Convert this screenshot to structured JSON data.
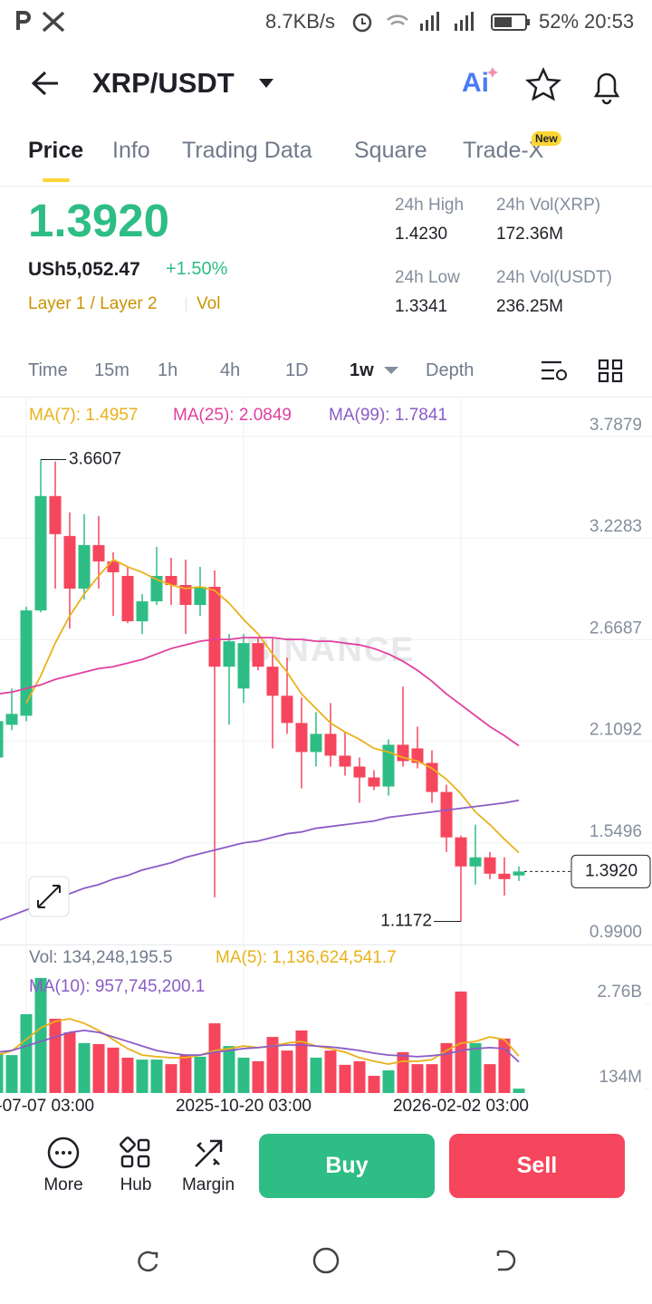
{
  "status": {
    "speed": "8.7KB/s",
    "battery": "52%",
    "time": "20:53"
  },
  "header": {
    "pair": "XRP/USDT",
    "ai": "Ai"
  },
  "tabs": {
    "items": [
      "Price",
      "Info",
      "Trading Data",
      "Square",
      "Trade-X"
    ],
    "badge": "New"
  },
  "price": {
    "last": "1.3920",
    "local": "USh5,052.47",
    "change": "+1.50%",
    "tags": [
      "Layer 1 / Layer 2",
      "Vol"
    ]
  },
  "stats": {
    "labels": [
      "24h High",
      "24h Vol(XRP)",
      "24h Low",
      "24h Vol(USDT)"
    ],
    "values": [
      "1.4230",
      "172.36M",
      "1.3341",
      "236.25M"
    ]
  },
  "intervals": [
    "Time",
    "15m",
    "1h",
    "4h",
    "1D",
    "1w",
    "Depth"
  ],
  "chart_data": [
    {
      "type": "candlestick",
      "watermark": "BINANCE",
      "up_color": "#2ebd85",
      "down_color": "#f6465d",
      "categories": [
        null,
        null,
        "2025-07-07 03:00",
        null,
        null,
        null,
        null,
        null,
        null,
        null,
        null,
        null,
        null,
        null,
        null,
        null,
        null,
        "2025-10-20 03:00",
        null,
        null,
        null,
        null,
        null,
        null,
        null,
        null,
        null,
        null,
        null,
        null,
        null,
        null,
        "2026-02-02 03:00",
        null,
        null,
        null,
        null
      ],
      "open": [
        2.02,
        2.2,
        2.25,
        2.83,
        3.46,
        3.24,
        2.95,
        3.19,
        3.1,
        3.02,
        2.77,
        2.88,
        3.02,
        2.97,
        2.86,
        2.96,
        2.52,
        2.4,
        2.65,
        2.52,
        2.36,
        2.21,
        2.05,
        2.15,
        2.03,
        1.97,
        1.91,
        1.86,
        2.09,
        2.07,
        1.99,
        1.83,
        1.58,
        1.42,
        1.47,
        1.38,
        1.37
      ],
      "high": [
        2.25,
        2.4,
        2.85,
        3.6607,
        3.65,
        3.37,
        3.36,
        3.35,
        3.15,
        3.07,
        2.92,
        3.18,
        3.12,
        3.11,
        3.07,
        3.05,
        2.7,
        2.7,
        2.68,
        2.68,
        2.57,
        2.35,
        2.27,
        2.32,
        2.16,
        2.02,
        1.95,
        2.12,
        2.41,
        2.19,
        2.06,
        1.87,
        1.59,
        1.65,
        1.5,
        1.47,
        1.42
      ],
      "low": [
        2.0,
        2.17,
        2.22,
        2.82,
        2.95,
        2.73,
        2.89,
        2.95,
        2.8,
        2.76,
        2.7,
        2.86,
        2.86,
        2.7,
        2.8,
        1.25,
        2.2,
        2.32,
        2.5,
        2.07,
        2.15,
        1.85,
        1.97,
        1.97,
        1.92,
        1.77,
        1.84,
        1.81,
        1.97,
        1.96,
        1.77,
        1.5,
        1.1172,
        1.32,
        1.35,
        1.26,
        1.34
      ],
      "close": [
        2.22,
        2.26,
        2.83,
        3.46,
        3.25,
        2.95,
        3.19,
        3.1,
        3.04,
        2.77,
        2.88,
        3.02,
        2.97,
        2.86,
        2.96,
        2.52,
        2.66,
        2.65,
        2.52,
        2.36,
        2.21,
        2.05,
        2.15,
        2.03,
        1.97,
        1.91,
        1.86,
        2.09,
        2.0,
        1.99,
        1.83,
        1.58,
        1.42,
        1.47,
        1.38,
        1.35,
        1.392
      ],
      "series": [
        {
          "name": "MA(7): 1.4957",
          "color": "#e9b21a",
          "values": [
            null,
            null,
            2.32,
            2.47,
            2.65,
            2.8,
            2.92,
            3.02,
            3.11,
            3.07,
            3.04,
            3.0,
            2.97,
            2.95,
            2.96,
            2.94,
            2.87,
            2.78,
            2.7,
            2.59,
            2.49,
            2.37,
            2.29,
            2.21,
            2.16,
            2.12,
            2.07,
            2.05,
            2.02,
            2.0,
            1.96,
            1.9,
            1.82,
            1.72,
            1.65,
            1.57,
            1.4957
          ]
        },
        {
          "name": "MA(25): 2.0849",
          "color": "#e040a0",
          "values": [
            2.37,
            2.38,
            2.4,
            2.42,
            2.45,
            2.47,
            2.49,
            2.51,
            2.52,
            2.54,
            2.56,
            2.59,
            2.62,
            2.64,
            2.66,
            2.67,
            2.67,
            2.68,
            2.68,
            2.68,
            2.67,
            2.67,
            2.66,
            2.66,
            2.65,
            2.64,
            2.62,
            2.59,
            2.55,
            2.5,
            2.44,
            2.37,
            2.31,
            2.25,
            2.19,
            2.14,
            2.0849
          ]
        },
        {
          "name": "MA(99): 1.7841",
          "color": "#8a5cc7",
          "values": [
            1.12,
            1.15,
            1.18,
            1.21,
            1.24,
            1.27,
            1.3,
            1.32,
            1.35,
            1.37,
            1.4,
            1.42,
            1.44,
            1.47,
            1.49,
            1.51,
            1.53,
            1.55,
            1.56,
            1.58,
            1.6,
            1.61,
            1.63,
            1.64,
            1.65,
            1.66,
            1.67,
            1.69,
            1.7,
            1.71,
            1.72,
            1.73,
            1.74,
            1.75,
            1.76,
            1.77,
            1.7841
          ]
        }
      ],
      "ylim": [
        0.99,
        3.9725
      ],
      "yticks": [
        3.7879,
        3.2283,
        2.6687,
        2.1092,
        1.5496,
        {
          "value": 0.99,
          "label": "0.9900"
        }
      ],
      "grid": true
    },
    {
      "type": "bar",
      "title": "Vol: 134,248,195.5",
      "values": [
        1230000000,
        1170000000,
        2430000000,
        3550000000,
        2290000000,
        1870000000,
        1540000000,
        1510000000,
        1400000000,
        1090000000,
        1030000000,
        1030000000,
        890000000,
        1170000000,
        1120000000,
        2150000000,
        1450000000,
        1090000000,
        980000000,
        1730000000,
        1310000000,
        1930000000,
        1090000000,
        1310000000,
        870000000,
        980000000,
        530000000,
        700000000,
        1260000000,
        890000000,
        890000000,
        1540000000,
        3130000000,
        1540000000,
        890000000,
        1680000000,
        134248195.5
      ],
      "series": [
        {
          "name": "MA(5): 1,136,624,541.7",
          "color": "#e9b21a",
          "values": [
            1170000000,
            1300000000,
            1650000000,
            2010000000,
            2210000000,
            2290000000,
            2150000000,
            1930000000,
            1650000000,
            1370000000,
            1170000000,
            1120000000,
            1090000000,
            1090000000,
            1170000000,
            1310000000,
            1370000000,
            1450000000,
            1400000000,
            1450000000,
            1540000000,
            1590000000,
            1450000000,
            1370000000,
            1260000000,
            1090000000,
            980000000,
            890000000,
            980000000,
            980000000,
            1030000000,
            1310000000,
            1540000000,
            1590000000,
            1730000000,
            1650000000,
            1136624541.7
          ]
        },
        {
          "name": "MA(10): 957,745,200.1",
          "color": "#8a5cc7",
          "values": [
            1260000000,
            1310000000,
            1450000000,
            1590000000,
            1730000000,
            1870000000,
            1930000000,
            1870000000,
            1730000000,
            1590000000,
            1450000000,
            1310000000,
            1230000000,
            1170000000,
            1170000000,
            1260000000,
            1310000000,
            1370000000,
            1400000000,
            1450000000,
            1480000000,
            1480000000,
            1450000000,
            1420000000,
            1370000000,
            1310000000,
            1230000000,
            1170000000,
            1150000000,
            1120000000,
            1150000000,
            1200000000,
            1310000000,
            1370000000,
            1400000000,
            1370000000,
            957745200.1
          ]
        }
      ],
      "ylim": [
        0,
        4525000000
      ],
      "yticks": [
        {
          "value": 2760000000,
          "label": "2.76B"
        },
        {
          "value": 134000000,
          "label": "134M"
        }
      ]
    }
  ],
  "bottom": {
    "items": [
      "More",
      "Hub",
      "Margin"
    ],
    "buy": "Buy",
    "sell": "Sell"
  }
}
